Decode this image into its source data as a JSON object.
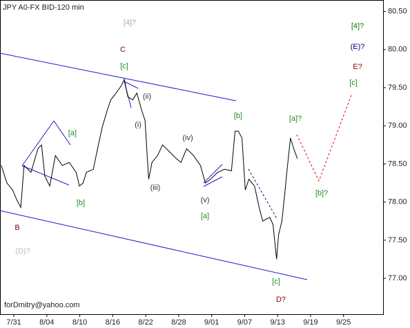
{
  "chart_data": {
    "type": "line",
    "title": "JPY A0-FX BID-120 min",
    "footer": "forDmitry@yahoo.com",
    "color": "#000000",
    "x": [
      -0.38,
      -0.21,
      -0.04,
      0.1,
      0.21,
      0.31,
      0.52,
      0.73,
      0.84,
      0.94,
      1.09,
      1.26,
      1.47,
      1.68,
      1.89,
      1.99,
      2.1,
      2.2,
      2.41,
      2.52,
      2.68,
      2.83,
      2.94,
      3.1,
      3.25,
      3.35,
      3.46,
      3.61,
      3.73,
      3.88,
      3.98,
      4.05,
      4.09,
      4.19,
      4.36,
      4.51,
      4.72,
      4.93,
      5.07,
      5.24,
      5.45,
      5.66,
      5.81,
      5.97,
      6.18,
      6.39,
      6.6,
      6.71,
      6.81,
      6.92,
      7.02,
      7.13,
      7.3,
      7.44,
      7.55,
      7.76,
      7.86,
      7.97,
      8.03,
      8.13,
      8.22,
      8.28,
      8.39,
      8.49,
      8.6
    ],
    "values": [
      78.48,
      78.25,
      78.16,
      78.02,
      77.93,
      78.48,
      78.39,
      78.7,
      78.75,
      78.34,
      78.21,
      78.61,
      78.48,
      78.52,
      78.39,
      78.21,
      78.25,
      78.39,
      78.43,
      78.66,
      78.98,
      79.2,
      79.34,
      79.43,
      79.52,
      79.61,
      79.38,
      79.34,
      79.43,
      79.2,
      79.07,
      78.57,
      78.3,
      78.52,
      78.61,
      78.75,
      78.66,
      78.57,
      78.52,
      78.7,
      78.61,
      78.48,
      78.25,
      78.3,
      78.39,
      78.43,
      78.41,
      78.93,
      78.93,
      78.84,
      78.16,
      78.3,
      78.21,
      77.93,
      77.75,
      77.8,
      77.71,
      77.25,
      77.57,
      77.75,
      78.12,
      78.39,
      78.84,
      78.7,
      78.57
    ],
    "xlim": [
      -0.42,
      11.2
    ],
    "xticks": [
      {
        "value": 0,
        "label": "7/31"
      },
      {
        "value": 1,
        "label": "8/04"
      },
      {
        "value": 2,
        "label": "8/10"
      },
      {
        "value": 3,
        "label": "8/16"
      },
      {
        "value": 4,
        "label": "8/22"
      },
      {
        "value": 5,
        "label": "8/28"
      },
      {
        "value": 6,
        "label": "9/01"
      },
      {
        "value": 7,
        "label": "9/07"
      },
      {
        "value": 8,
        "label": "9/13"
      },
      {
        "value": 9,
        "label": "9/19"
      },
      {
        "value": 10,
        "label": "9/25"
      }
    ],
    "ylim": [
      76.53,
      80.65
    ],
    "yticks": [
      {
        "value": 77,
        "label": "77.00"
      },
      {
        "value": 77.5,
        "label": "77.50"
      },
      {
        "value": 78,
        "label": "78.00"
      },
      {
        "value": 78.5,
        "label": "78.50"
      },
      {
        "value": 79,
        "label": "79.00"
      },
      {
        "value": 79.5,
        "label": "79.50"
      },
      {
        "value": 80,
        "label": "80.00"
      },
      {
        "value": 80.5,
        "label": "80.50"
      }
    ],
    "annotations": [
      {
        "text": "[4]?",
        "color": "#aaaaaa"
      },
      {
        "text": "C",
        "color": "#8b0000"
      },
      {
        "text": "[c]",
        "color": "#228b22"
      },
      {
        "text": "(ii)",
        "color": "#333333"
      },
      {
        "text": "(i)",
        "color": "#333333"
      },
      {
        "text": "[a]",
        "color": "#228b22"
      },
      {
        "text": "[b]",
        "color": "#228b22"
      },
      {
        "text": "(iii)",
        "color": "#333333"
      },
      {
        "text": "(iv)",
        "color": "#333333"
      },
      {
        "text": "(v)",
        "color": "#333333"
      },
      {
        "text": "[a]",
        "color": "#228b22"
      },
      {
        "text": "[b]",
        "color": "#228b22"
      },
      {
        "text": "[a]?",
        "color": "#228b22"
      },
      {
        "text": "[b]?",
        "color": "#228b22"
      },
      {
        "text": "[c]",
        "color": "#228b22"
      },
      {
        "text": "[4]?",
        "color": "#008000"
      },
      {
        "text": "(E)?",
        "color": "#000080"
      },
      {
        "text": "E?",
        "color": "#8b0000"
      },
      {
        "text": "B",
        "color": "#8b0000"
      },
      {
        "text": "(D)?",
        "color": "#bbbbbb"
      },
      {
        "text": "[c]",
        "color": "#228b22"
      },
      {
        "text": "D?",
        "color": "#8b0000"
      }
    ]
  }
}
